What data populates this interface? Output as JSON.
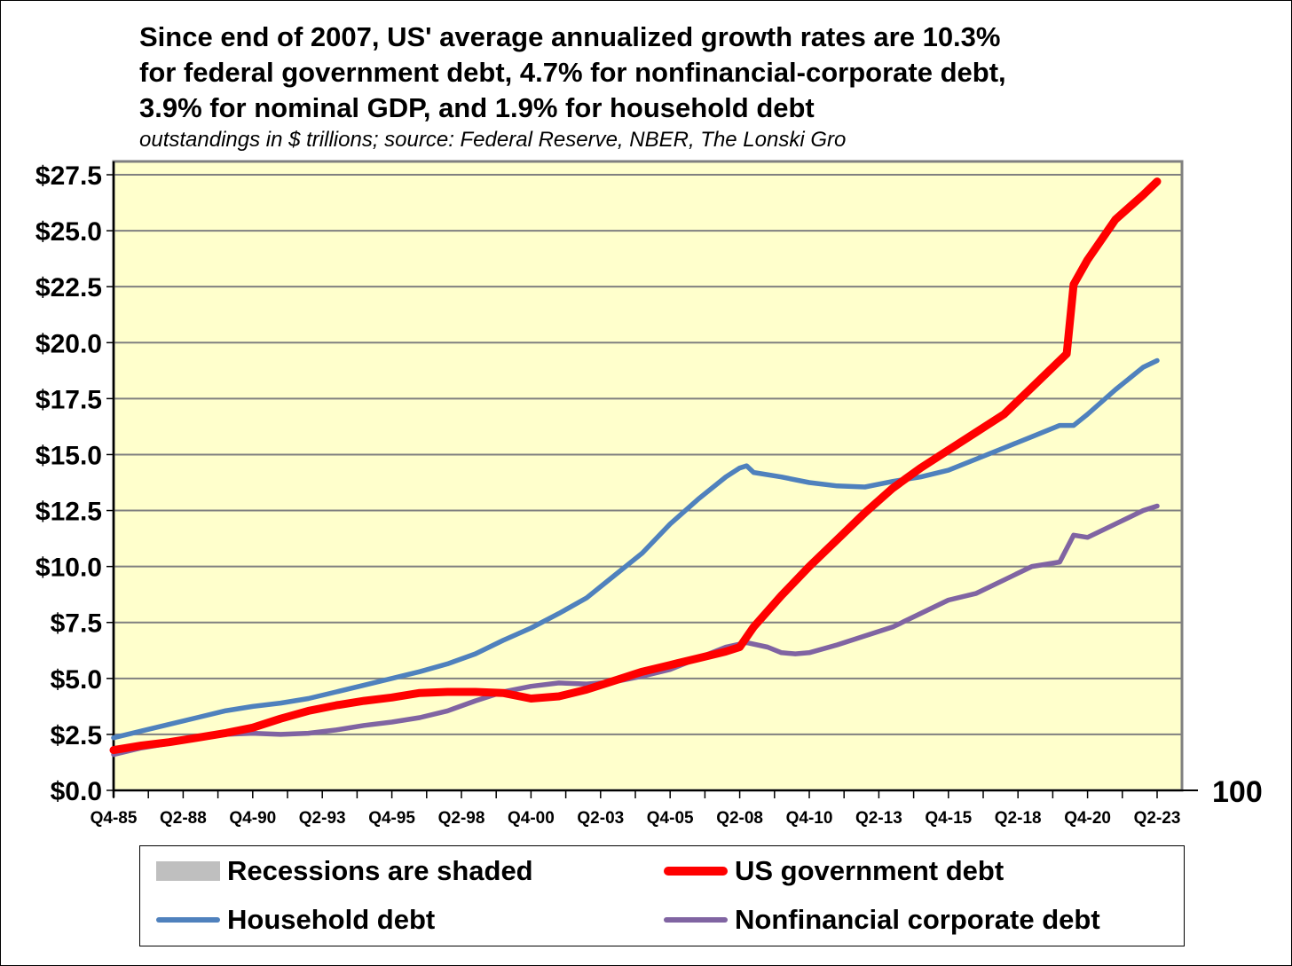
{
  "chart_data": {
    "type": "line",
    "title": [
      "Since end of 2007, US' average annualized growth rates are 10.3%",
      "for federal government debt, 4.7% for nonfinancial-corporate debt,",
      "3.9% for nominal GDP, and 1.9% for household debt"
    ],
    "subtitle": "outstandings in $ trillions; source: Federal Reserve, NBER, The Lonski Gro",
    "xlabel": "",
    "ylabel": "",
    "ylim": [
      0,
      27.5
    ],
    "yticks": [
      "$0.0",
      "$2.5",
      "$5.0",
      "$7.5",
      "$10.0",
      "$12.5",
      "$15.0",
      "$17.5",
      "$20.0",
      "$22.5",
      "$25.0",
      "$27.5"
    ],
    "ytick_values": [
      0,
      2.5,
      5,
      7.5,
      10,
      12.5,
      15,
      17.5,
      20,
      22.5,
      25,
      27.5
    ],
    "xlim": [
      "Q4-85",
      "Q1-24"
    ],
    "xticks": [
      "Q4-85",
      "Q2-88",
      "Q4-90",
      "Q2-93",
      "Q4-95",
      "Q2-98",
      "Q4-00",
      "Q2-03",
      "Q4-05",
      "Q2-08",
      "Q4-10",
      "Q2-13",
      "Q4-15",
      "Q2-18",
      "Q4-20",
      "Q2-23"
    ],
    "right_axis_label": "100",
    "grid": true,
    "background": "#FFFFCC",
    "legend_position": "bottom",
    "legend": [
      {
        "name": "Recessions are shaded",
        "color": "#BFBFBF",
        "type": "area"
      },
      {
        "name": "US government debt",
        "color": "#FF0000",
        "type": "line"
      },
      {
        "name": "Household debt",
        "color": "#4F81BD",
        "type": "line"
      },
      {
        "name": "Nonfinancial corporate debt",
        "color": "#8064A2",
        "type": "line"
      }
    ],
    "series": [
      {
        "name": "US government debt",
        "color": "#FF0000",
        "x": [
          "Q4-85",
          "Q4-86",
          "Q4-87",
          "Q4-88",
          "Q4-89",
          "Q4-90",
          "Q4-91",
          "Q4-92",
          "Q4-93",
          "Q4-94",
          "Q4-95",
          "Q4-96",
          "Q4-97",
          "Q4-98",
          "Q4-99",
          "Q4-00",
          "Q4-01",
          "Q4-02",
          "Q4-03",
          "Q4-04",
          "Q4-05",
          "Q4-06",
          "Q4-07",
          "Q2-08",
          "Q4-08",
          "Q4-09",
          "Q4-10",
          "Q4-11",
          "Q4-12",
          "Q4-13",
          "Q4-14",
          "Q4-15",
          "Q4-16",
          "Q4-17",
          "Q4-18",
          "Q4-19",
          "Q1-20",
          "Q2-20",
          "Q4-20",
          "Q4-21",
          "Q4-22",
          "Q2-23"
        ],
        "values": [
          1.8,
          2.0,
          2.15,
          2.35,
          2.55,
          2.8,
          3.2,
          3.55,
          3.8,
          4.0,
          4.15,
          4.35,
          4.4,
          4.4,
          4.35,
          4.1,
          4.2,
          4.5,
          4.9,
          5.3,
          5.6,
          5.9,
          6.2,
          6.4,
          7.3,
          8.7,
          10.0,
          11.2,
          12.4,
          13.5,
          14.4,
          15.2,
          16.0,
          16.8,
          18.0,
          19.2,
          19.5,
          22.6,
          23.7,
          25.5,
          26.6,
          27.2
        ]
      },
      {
        "name": "Household debt",
        "color": "#4F81BD",
        "x": [
          "Q4-85",
          "Q4-86",
          "Q4-87",
          "Q4-88",
          "Q4-89",
          "Q4-90",
          "Q4-91",
          "Q4-92",
          "Q4-93",
          "Q4-94",
          "Q4-95",
          "Q4-96",
          "Q4-97",
          "Q4-98",
          "Q4-99",
          "Q4-00",
          "Q4-01",
          "Q4-02",
          "Q4-03",
          "Q4-04",
          "Q4-05",
          "Q4-06",
          "Q4-07",
          "Q2-08",
          "Q3-08",
          "Q4-08",
          "Q4-09",
          "Q4-10",
          "Q4-11",
          "Q4-12",
          "Q4-13",
          "Q4-14",
          "Q4-15",
          "Q4-16",
          "Q4-17",
          "Q4-18",
          "Q4-19",
          "Q2-20",
          "Q4-20",
          "Q4-21",
          "Q4-22",
          "Q2-23"
        ],
        "values": [
          2.35,
          2.65,
          2.95,
          3.25,
          3.55,
          3.75,
          3.9,
          4.1,
          4.4,
          4.7,
          5.0,
          5.3,
          5.65,
          6.1,
          6.7,
          7.25,
          7.9,
          8.6,
          9.6,
          10.6,
          11.9,
          13.0,
          14.0,
          14.4,
          14.5,
          14.2,
          14.0,
          13.75,
          13.6,
          13.55,
          13.8,
          14.0,
          14.3,
          14.8,
          15.3,
          15.8,
          16.3,
          16.3,
          16.8,
          17.9,
          18.9,
          19.2
        ]
      },
      {
        "name": "Nonfinancial corporate debt",
        "color": "#8064A2",
        "x": [
          "Q4-85",
          "Q4-86",
          "Q4-87",
          "Q4-88",
          "Q4-89",
          "Q4-90",
          "Q4-91",
          "Q4-92",
          "Q4-93",
          "Q4-94",
          "Q4-95",
          "Q4-96",
          "Q4-97",
          "Q4-98",
          "Q4-99",
          "Q4-00",
          "Q4-01",
          "Q4-02",
          "Q4-03",
          "Q4-04",
          "Q4-05",
          "Q4-06",
          "Q4-07",
          "Q3-08",
          "Q2-09",
          "Q4-09",
          "Q2-10",
          "Q4-10",
          "Q4-11",
          "Q4-12",
          "Q4-13",
          "Q4-14",
          "Q4-15",
          "Q4-16",
          "Q4-17",
          "Q4-18",
          "Q4-19",
          "Q2-20",
          "Q4-20",
          "Q4-21",
          "Q4-22",
          "Q2-23"
        ],
        "values": [
          1.6,
          1.9,
          2.1,
          2.35,
          2.5,
          2.55,
          2.5,
          2.55,
          2.7,
          2.9,
          3.05,
          3.25,
          3.55,
          4.0,
          4.4,
          4.65,
          4.8,
          4.75,
          4.85,
          5.1,
          5.4,
          5.9,
          6.4,
          6.6,
          6.4,
          6.15,
          6.1,
          6.15,
          6.5,
          6.9,
          7.3,
          7.9,
          8.5,
          8.8,
          9.4,
          10.0,
          10.2,
          11.4,
          11.3,
          11.9,
          12.5,
          12.7
        ]
      }
    ]
  }
}
